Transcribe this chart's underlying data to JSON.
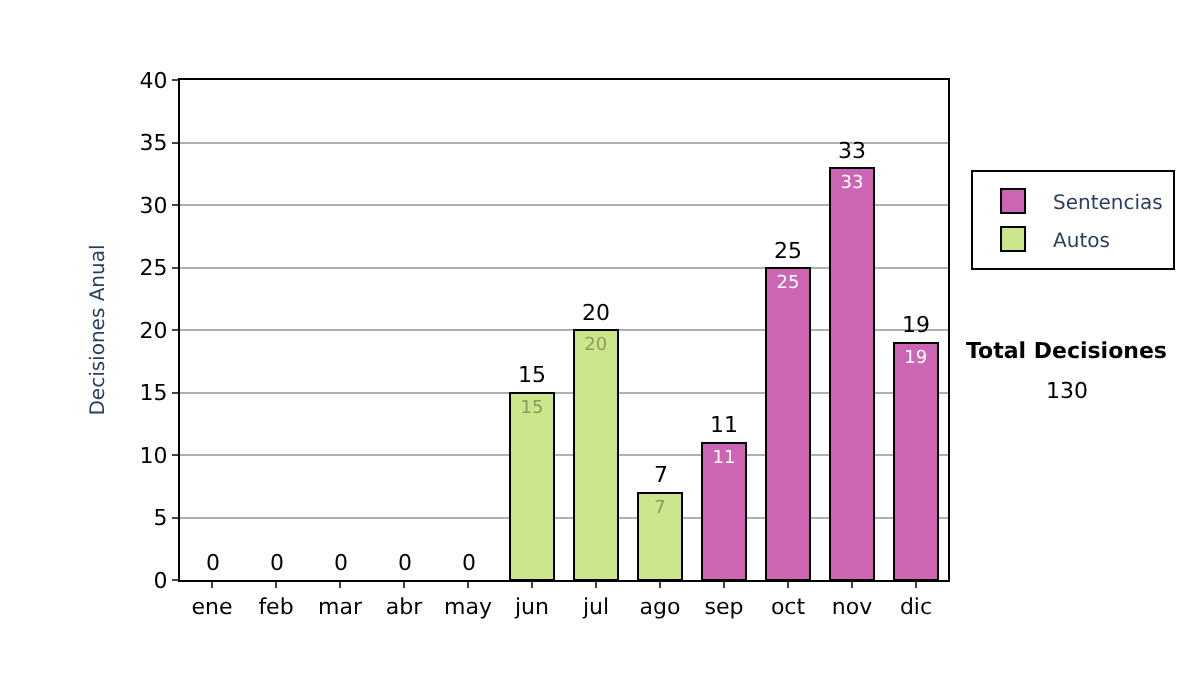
{
  "chart_data": {
    "type": "bar",
    "ylabel": "Decisiones Anual",
    "categories": [
      "ene",
      "feb",
      "mar",
      "abr",
      "may",
      "jun",
      "jul",
      "ago",
      "sep",
      "oct",
      "nov",
      "dic"
    ],
    "stacked": true,
    "series": [
      {
        "name": "Sentencias",
        "color": "#cc66b4",
        "values": [
          null,
          null,
          null,
          null,
          null,
          null,
          null,
          null,
          11,
          25,
          33,
          19
        ],
        "value_labels": [
          null,
          null,
          null,
          null,
          null,
          null,
          null,
          null,
          "11",
          "25",
          "33",
          "19"
        ]
      },
      {
        "name": "Autos",
        "color": "#cce68c",
        "values": [
          null,
          null,
          null,
          null,
          null,
          15,
          20,
          7,
          null,
          null,
          null,
          null
        ],
        "value_labels": [
          null,
          null,
          null,
          null,
          null,
          "15",
          "20",
          "7",
          null,
          null,
          null,
          null
        ]
      }
    ],
    "totals": [
      "0",
      "0",
      "0",
      "0",
      "0",
      "15",
      "20",
      "7",
      "11",
      "25",
      "33",
      "19"
    ],
    "ylim": [
      0,
      40
    ],
    "yticks": [
      0,
      5,
      10,
      15,
      20,
      25,
      30,
      35,
      40
    ],
    "grid": "y",
    "legend": "right",
    "annotations": [
      "Total Decisiones",
      "130"
    ]
  }
}
